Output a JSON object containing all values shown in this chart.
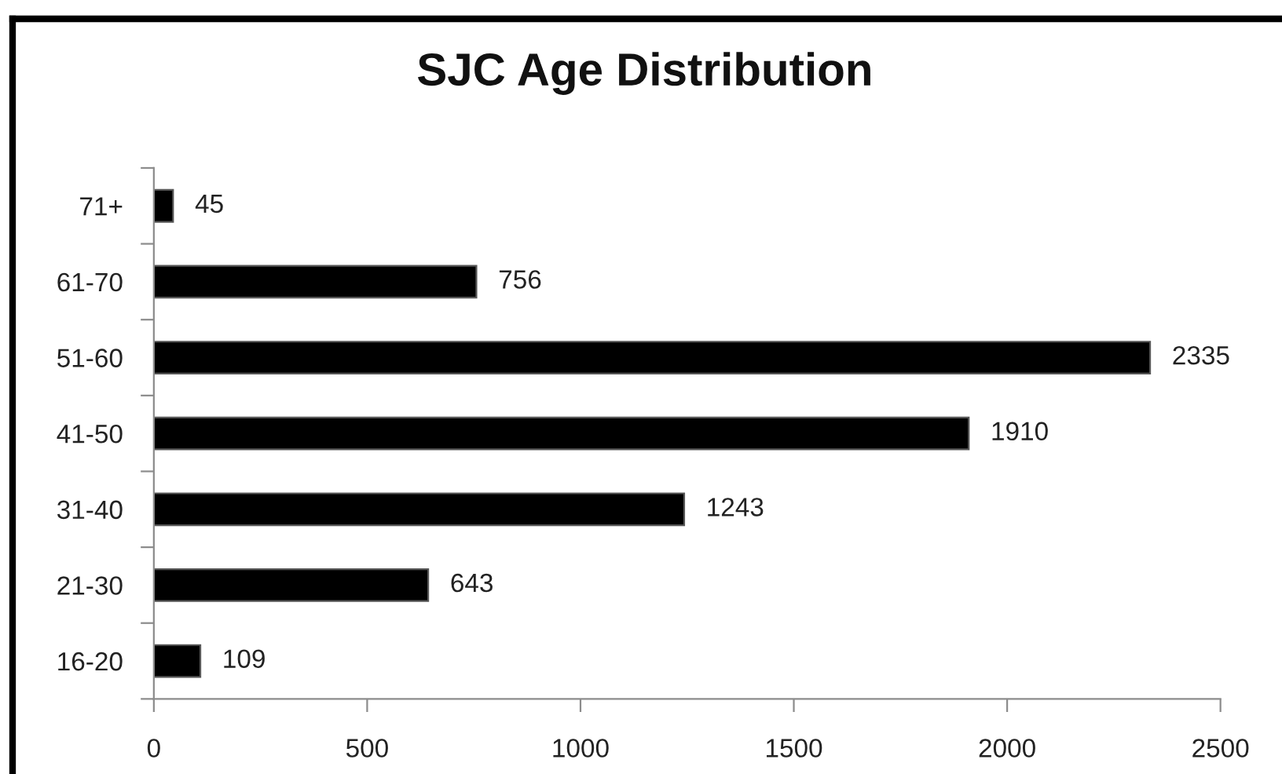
{
  "chart_data": {
    "type": "bar",
    "orientation": "horizontal",
    "title": "SJC Age Distribution",
    "categories": [
      "71+",
      "61-70",
      "51-60",
      "41-50",
      "31-40",
      "21-30",
      "16-20"
    ],
    "values": [
      45,
      756,
      2335,
      1910,
      1243,
      643,
      109
    ],
    "color": "#000000",
    "xlim": [
      0,
      2500
    ],
    "xticks": [
      0,
      500,
      1000,
      1500,
      2000,
      2500
    ],
    "data_labels": true,
    "grid": false,
    "legend": false
  }
}
